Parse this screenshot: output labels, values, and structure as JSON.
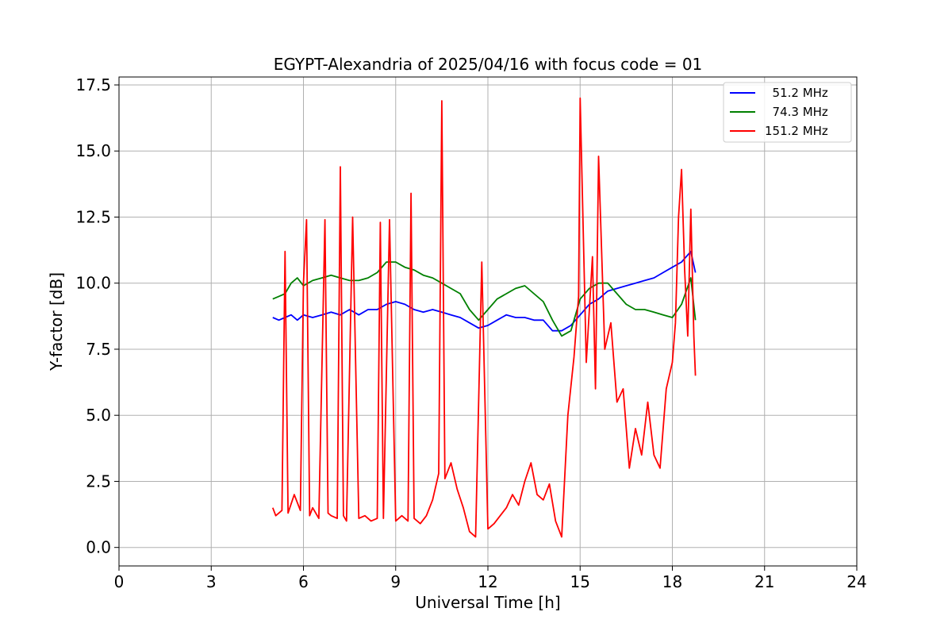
{
  "chart_data": {
    "type": "line",
    "title": "EGYPT-Alexandria of 2025/04/16 with focus code = 01",
    "xlabel": "Universal Time [h]",
    "ylabel": "Y-factor [dB]",
    "xlim": [
      0,
      24
    ],
    "ylim": [
      -0.7,
      17.8
    ],
    "xticks": [
      0,
      3,
      6,
      9,
      12,
      15,
      18,
      21,
      24
    ],
    "xtick_labels": [
      "0",
      "3",
      "6",
      "9",
      "12",
      "15",
      "18",
      "21",
      "24"
    ],
    "yticks": [
      0,
      2.5,
      5,
      7.5,
      10,
      12.5,
      15,
      17.5
    ],
    "ytick_labels": [
      "0.0",
      "2.5",
      "5.0",
      "7.5",
      "10.0",
      "12.5",
      "15.0",
      "17.5"
    ],
    "grid": true,
    "legend_position": "top-right",
    "series": [
      {
        "name": "  51.2 MHz",
        "color": "#0000ff",
        "x": [
          5.0,
          5.2,
          5.4,
          5.6,
          5.8,
          6.0,
          6.3,
          6.6,
          6.9,
          7.2,
          7.5,
          7.8,
          8.1,
          8.4,
          8.7,
          9.0,
          9.3,
          9.6,
          9.9,
          10.2,
          10.5,
          10.8,
          11.1,
          11.4,
          11.7,
          12.0,
          12.3,
          12.6,
          12.9,
          13.2,
          13.5,
          13.8,
          14.1,
          14.4,
          14.7,
          15.0,
          15.3,
          15.6,
          15.9,
          16.2,
          16.5,
          16.8,
          17.1,
          17.4,
          17.7,
          18.0,
          18.3,
          18.6,
          18.75
        ],
        "y": [
          8.7,
          8.6,
          8.7,
          8.8,
          8.6,
          8.8,
          8.7,
          8.8,
          8.9,
          8.8,
          9.0,
          8.8,
          9.0,
          9.0,
          9.2,
          9.3,
          9.2,
          9.0,
          8.9,
          9.0,
          8.9,
          8.8,
          8.7,
          8.5,
          8.3,
          8.4,
          8.6,
          8.8,
          8.7,
          8.7,
          8.6,
          8.6,
          8.2,
          8.2,
          8.4,
          8.8,
          9.2,
          9.4,
          9.7,
          9.8,
          9.9,
          10.0,
          10.1,
          10.2,
          10.4,
          10.6,
          10.8,
          11.2,
          10.4
        ]
      },
      {
        "name": "  74.3 MHz",
        "color": "#008000",
        "x": [
          5.0,
          5.2,
          5.4,
          5.6,
          5.8,
          6.0,
          6.3,
          6.6,
          6.9,
          7.2,
          7.5,
          7.8,
          8.1,
          8.4,
          8.7,
          9.0,
          9.3,
          9.6,
          9.9,
          10.2,
          10.5,
          10.8,
          11.1,
          11.4,
          11.7,
          12.0,
          12.3,
          12.6,
          12.9,
          13.2,
          13.5,
          13.8,
          14.1,
          14.4,
          14.7,
          15.0,
          15.3,
          15.6,
          15.9,
          16.2,
          16.5,
          16.8,
          17.1,
          17.4,
          17.7,
          18.0,
          18.3,
          18.6,
          18.75
        ],
        "y": [
          9.4,
          9.5,
          9.6,
          10.0,
          10.2,
          9.9,
          10.1,
          10.2,
          10.3,
          10.2,
          10.1,
          10.1,
          10.2,
          10.4,
          10.8,
          10.8,
          10.6,
          10.5,
          10.3,
          10.2,
          10.0,
          9.8,
          9.6,
          9.0,
          8.6,
          9.0,
          9.4,
          9.6,
          9.8,
          9.9,
          9.6,
          9.3,
          8.6,
          8.0,
          8.2,
          9.4,
          9.8,
          10.0,
          10.0,
          9.6,
          9.2,
          9.0,
          9.0,
          8.9,
          8.8,
          8.7,
          9.2,
          10.2,
          8.6
        ]
      },
      {
        "name": "151.2 MHz",
        "color": "#ff0000",
        "x": [
          5.0,
          5.1,
          5.3,
          5.4,
          5.5,
          5.7,
          5.9,
          6.0,
          6.1,
          6.2,
          6.3,
          6.5,
          6.7,
          6.8,
          6.9,
          7.1,
          7.2,
          7.3,
          7.4,
          7.6,
          7.8,
          8.0,
          8.2,
          8.4,
          8.5,
          8.6,
          8.8,
          9.0,
          9.2,
          9.4,
          9.5,
          9.6,
          9.8,
          10.0,
          10.2,
          10.4,
          10.5,
          10.6,
          10.8,
          11.0,
          11.2,
          11.4,
          11.6,
          11.8,
          12.0,
          12.2,
          12.4,
          12.6,
          12.8,
          13.0,
          13.2,
          13.4,
          13.6,
          13.8,
          14.0,
          14.2,
          14.4,
          14.6,
          14.8,
          14.95,
          15.0,
          15.2,
          15.4,
          15.5,
          15.6,
          15.8,
          16.0,
          16.2,
          16.4,
          16.6,
          16.8,
          17.0,
          17.2,
          17.4,
          17.6,
          17.8,
          18.0,
          18.1,
          18.2,
          18.3,
          18.4,
          18.5,
          18.6,
          18.7,
          18.75
        ],
        "y": [
          1.5,
          1.2,
          1.4,
          11.2,
          1.3,
          2.0,
          1.4,
          10.0,
          12.4,
          1.2,
          1.5,
          1.1,
          12.4,
          1.3,
          1.2,
          1.1,
          14.4,
          1.2,
          1.0,
          12.5,
          1.1,
          1.2,
          1.0,
          1.1,
          12.3,
          1.1,
          12.4,
          1.0,
          1.2,
          1.0,
          13.4,
          1.1,
          0.9,
          1.2,
          1.8,
          2.8,
          16.9,
          2.6,
          3.2,
          2.2,
          1.5,
          0.6,
          0.4,
          10.8,
          0.7,
          0.9,
          1.2,
          1.5,
          2.0,
          1.6,
          2.5,
          3.2,
          2.0,
          1.8,
          2.4,
          1.0,
          0.4,
          5.0,
          7.2,
          9.5,
          17.0,
          7.0,
          11.0,
          6.0,
          14.8,
          7.5,
          8.5,
          5.5,
          6.0,
          3.0,
          4.5,
          3.5,
          5.5,
          3.5,
          3.0,
          6.0,
          7.0,
          8.5,
          12.5,
          14.3,
          10.5,
          8.0,
          12.8,
          8.0,
          6.5
        ]
      }
    ]
  }
}
